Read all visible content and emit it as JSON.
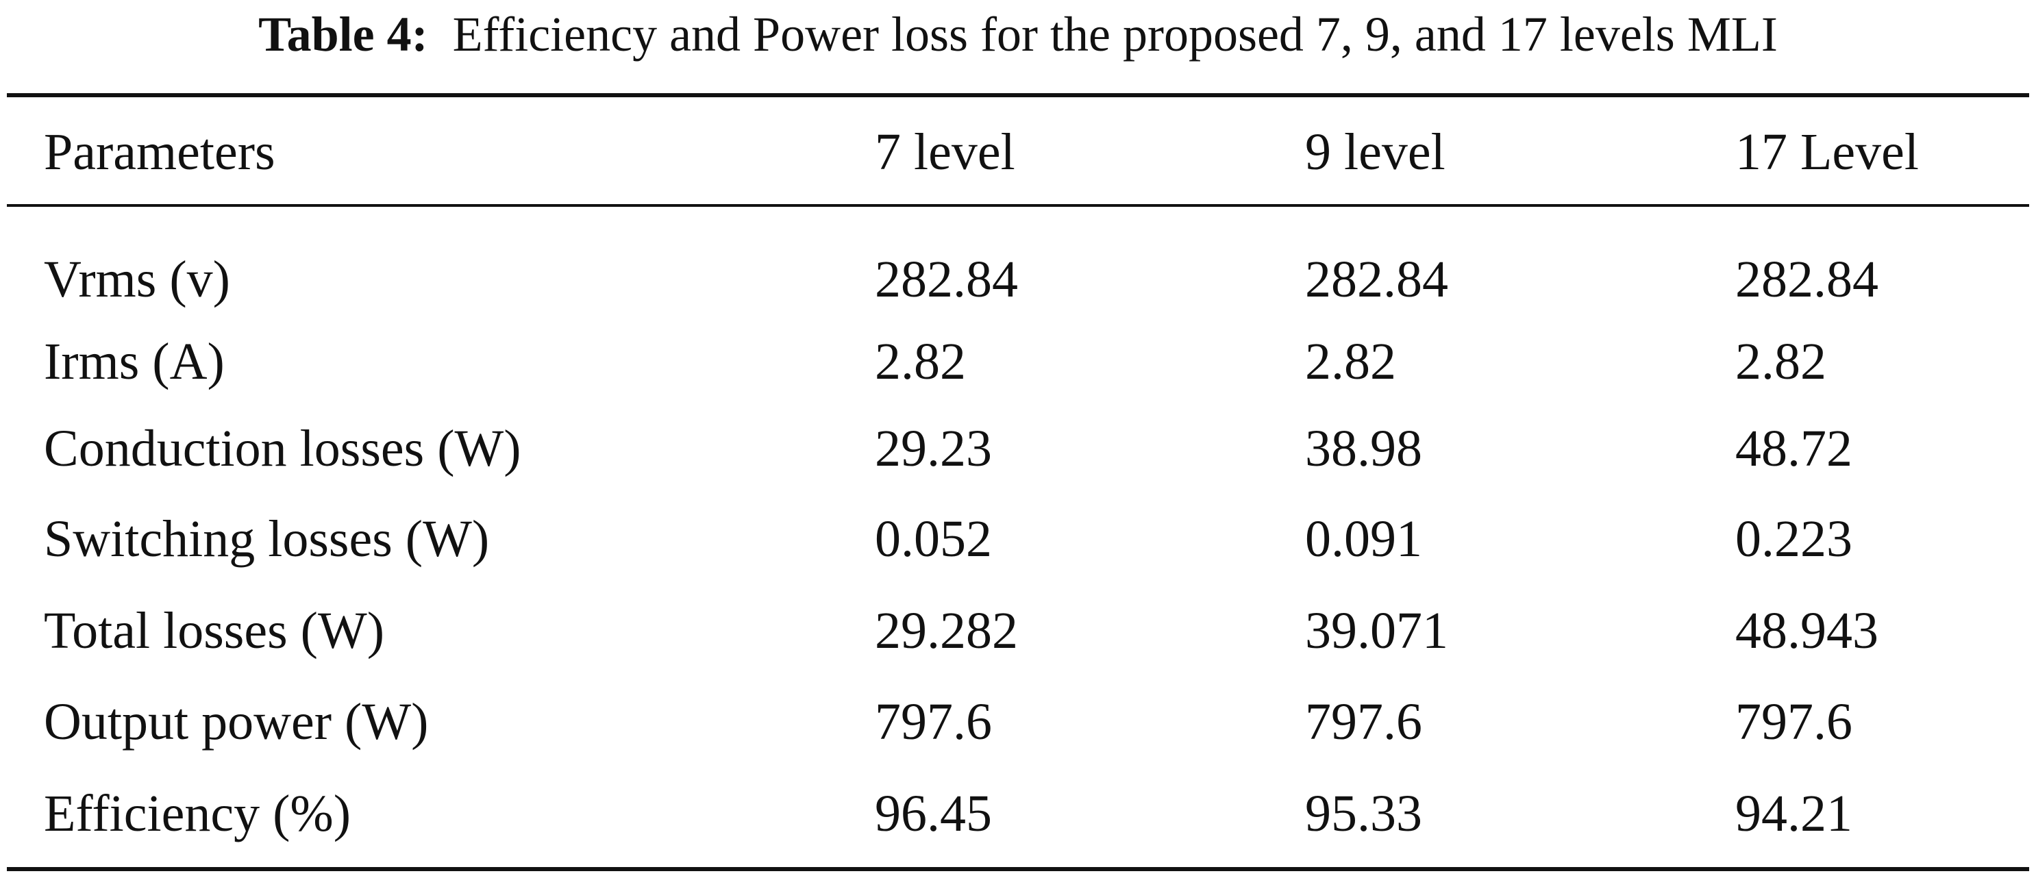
{
  "caption": {
    "label": "Table 4:",
    "text": "Efficiency and Power loss for the proposed 7, 9, and 17 levels MLI"
  },
  "table": {
    "columns": [
      "Parameters",
      "7 level",
      "9 level",
      "17 Level"
    ],
    "rows": [
      [
        "Vrms (v)",
        "282.84",
        "282.84",
        "282.84"
      ],
      [
        "Irms (A)",
        "2.82",
        "2.82",
        "2.82"
      ],
      [
        "Conduction losses (W)",
        "29.23",
        "38.98",
        "48.72"
      ],
      [
        "Switching losses (W)",
        "0.052",
        "0.091",
        "0.223"
      ],
      [
        "Total losses (W)",
        "29.282",
        "39.071",
        "48.943"
      ],
      [
        "Output power (W)",
        "797.6",
        "797.6",
        "797.6"
      ],
      [
        "Efficiency (%)",
        "96.45",
        "95.33",
        "94.21"
      ]
    ]
  }
}
